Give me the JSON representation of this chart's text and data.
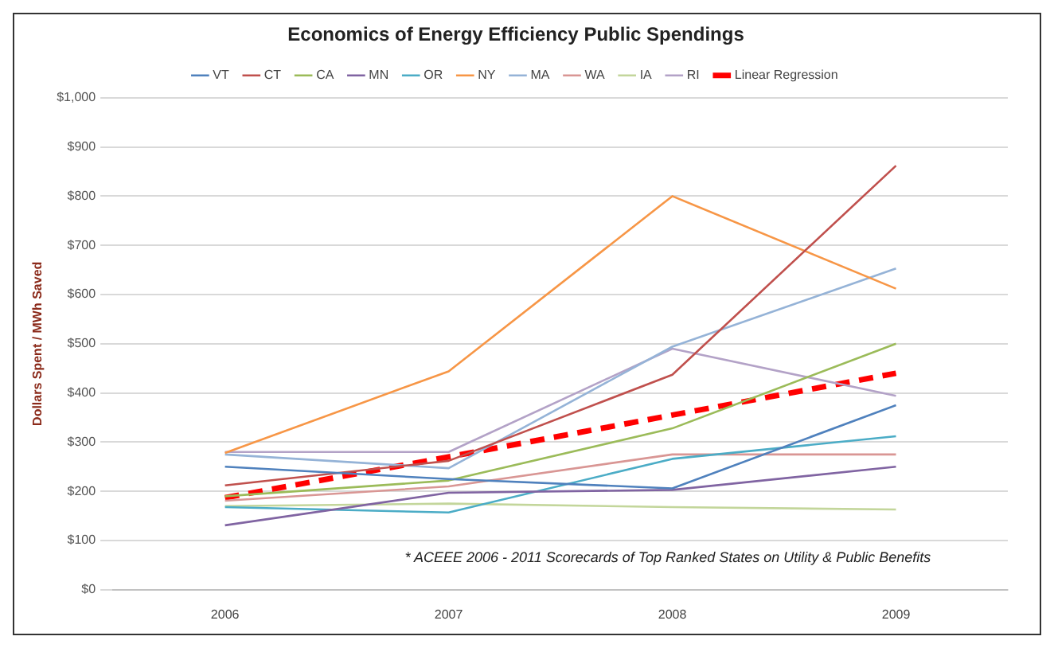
{
  "chart_data": {
    "type": "line",
    "title": "Economics of Energy Efficiency Public Spendings",
    "ylabel": "Dollars Spent / MWh Saved",
    "categories": [
      "2006",
      "2007",
      "2008",
      "2009"
    ],
    "series": [
      {
        "name": "VT",
        "color": "#4f81bd",
        "values": [
          250,
          225,
          206,
          375
        ]
      },
      {
        "name": "CT",
        "color": "#c0504d",
        "values": [
          212,
          262,
          437,
          862
        ]
      },
      {
        "name": "CA",
        "color": "#9bbb59",
        "values": [
          190,
          222,
          328,
          500
        ]
      },
      {
        "name": "MN",
        "color": "#8064a2",
        "values": [
          131,
          197,
          203,
          250
        ]
      },
      {
        "name": "OR",
        "color": "#4bacc6",
        "values": [
          168,
          157,
          266,
          312
        ]
      },
      {
        "name": "NY",
        "color": "#f79646",
        "values": [
          278,
          444,
          800,
          612
        ]
      },
      {
        "name": "MA",
        "color": "#95b3d7",
        "values": [
          275,
          247,
          494,
          653
        ]
      },
      {
        "name": "WA",
        "color": "#d99694",
        "values": [
          181,
          210,
          275,
          275
        ]
      },
      {
        "name": "IA",
        "color": "#c3d69b",
        "values": [
          170,
          175,
          168,
          163
        ]
      },
      {
        "name": "RI",
        "color": "#b3a2c7",
        "values": [
          280,
          280,
          490,
          394
        ]
      },
      {
        "name": "Linear Regression",
        "color": "#ff0000",
        "values": [
          187,
          270,
          355,
          440
        ],
        "line_style": "dashed"
      }
    ],
    "ylim": [
      0,
      1000
    ],
    "yticks": [
      {
        "value": 0,
        "label": "$0"
      },
      {
        "value": 100,
        "label": "$100"
      },
      {
        "value": 200,
        "label": "$200"
      },
      {
        "value": 300,
        "label": "$300"
      },
      {
        "value": 400,
        "label": "$400"
      },
      {
        "value": 500,
        "label": "$500"
      },
      {
        "value": 600,
        "label": "$600"
      },
      {
        "value": 700,
        "label": "$700"
      },
      {
        "value": 800,
        "label": "$800"
      },
      {
        "value": 900,
        "label": "$900"
      },
      {
        "value": 1000,
        "label": "$1,000"
      }
    ],
    "grid": "y",
    "legend": "top",
    "marker": "none",
    "line_style": "solid",
    "annotations": [
      "* ACEEE 2006 - 2011 Scorecards of Top Ranked States on Utility & Public Benefits"
    ]
  }
}
